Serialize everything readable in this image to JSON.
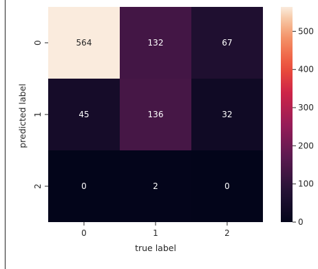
{
  "chart_data": {
    "type": "heatmap",
    "title": "",
    "title_visible_fragment": "‾  ‾‾‾‾  ‾‾‾‾‾‾‾  ‾",
    "xlabel": "true label",
    "ylabel": "predicted label",
    "x_categories": [
      "0",
      "1",
      "2"
    ],
    "y_categories": [
      "0",
      "1",
      "2"
    ],
    "values": [
      [
        564,
        132,
        67
      ],
      [
        45,
        136,
        32
      ],
      [
        0,
        2,
        0
      ]
    ],
    "colorbar": {
      "vmin": 0,
      "vmax": 564,
      "ticks": [
        0,
        100,
        200,
        300,
        400,
        500
      ],
      "colormap": "rocket"
    },
    "grid": false,
    "legend": "colorbar-right"
  }
}
